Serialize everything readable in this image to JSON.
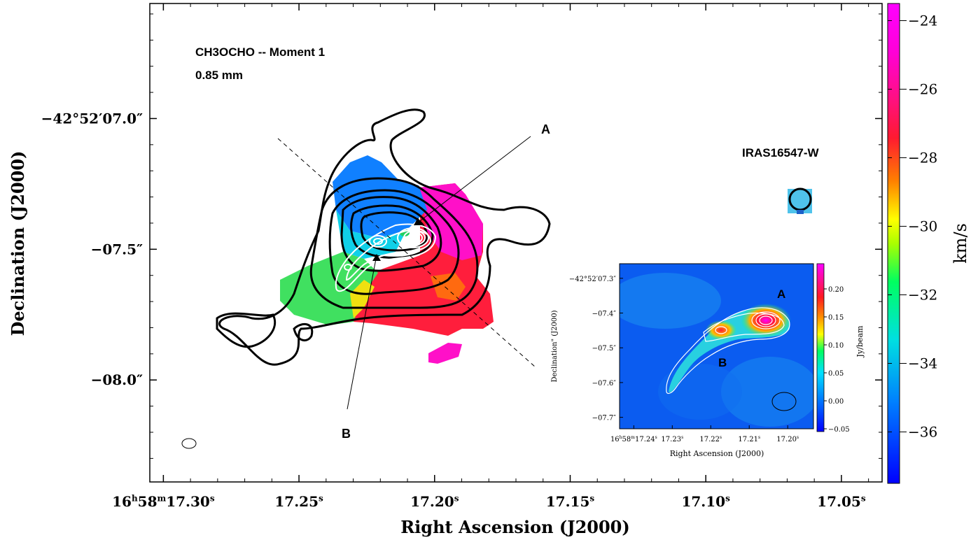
{
  "chart_data": {
    "type": "heatmap",
    "main": {
      "annotations": {
        "line1": "CH3OCHO -- Moment 1",
        "line2": "0.85 mm",
        "source": "IRAS16547-W",
        "label_a": "A",
        "label_b": "B"
      },
      "xlabel": "Right Ascension (J2000)",
      "ylabel": "Declination (J2000)",
      "x_ticks": [
        {
          "label": "16h58m17.30s",
          "value": 17.3
        },
        {
          "label": "17.25s",
          "value": 17.25
        },
        {
          "label": "17.20s",
          "value": 17.2
        },
        {
          "label": "17.15s",
          "value": 17.15
        },
        {
          "label": "17.10s",
          "value": 17.1
        },
        {
          "label": "17.05s",
          "value": 17.05
        }
      ],
      "y_ticks": [
        {
          "label": "−42°52′07.0″",
          "value": 7.0
        },
        {
          "label": "−07.5″",
          "value": 7.5
        },
        {
          "label": "−08.0″",
          "value": 8.0
        }
      ],
      "xlim": [
        17.305,
        17.035
      ],
      "ylim": [
        6.56,
        8.39
      ]
    },
    "colorbar": {
      "label": "km/s",
      "ticks": [
        "−24",
        "−26",
        "−28",
        "−30",
        "−32",
        "−34",
        "−36"
      ],
      "range": [
        -37.5,
        -23.5
      ],
      "tick_values": [
        -24,
        -26,
        -28,
        -30,
        -32,
        -34,
        -36
      ]
    },
    "inset": {
      "xlabel": "Right Ascension (J2000)",
      "ylabel": "Declination\" (J2000)",
      "x_ticks": [
        "16h58m17.24s",
        "17.23s",
        "17.22s",
        "17.21s",
        "17.20s"
      ],
      "x_tick_values": [
        17.24,
        17.23,
        17.22,
        17.21,
        17.2
      ],
      "y_ticks": [
        "−42°52′07.3″",
        "−07.4″",
        "−07.5″",
        "−07.6″",
        "−07.7″"
      ],
      "y_tick_values": [
        7.3,
        7.4,
        7.5,
        7.6,
        7.7
      ],
      "xlim": [
        17.2437,
        17.1933
      ],
      "ylim": [
        7.258,
        7.733
      ],
      "colorbar_label": "Jy/beam",
      "colorbar_ticks": [
        "0.20",
        "0.15",
        "0.10",
        "0.05",
        "0.00",
        "−0.05"
      ],
      "colorbar_tick_values": [
        0.2,
        0.15,
        0.1,
        0.05,
        0.0,
        -0.05
      ],
      "colorbar_range": [
        -0.055,
        0.245
      ],
      "labels": {
        "a": "A",
        "b": "B"
      }
    }
  }
}
